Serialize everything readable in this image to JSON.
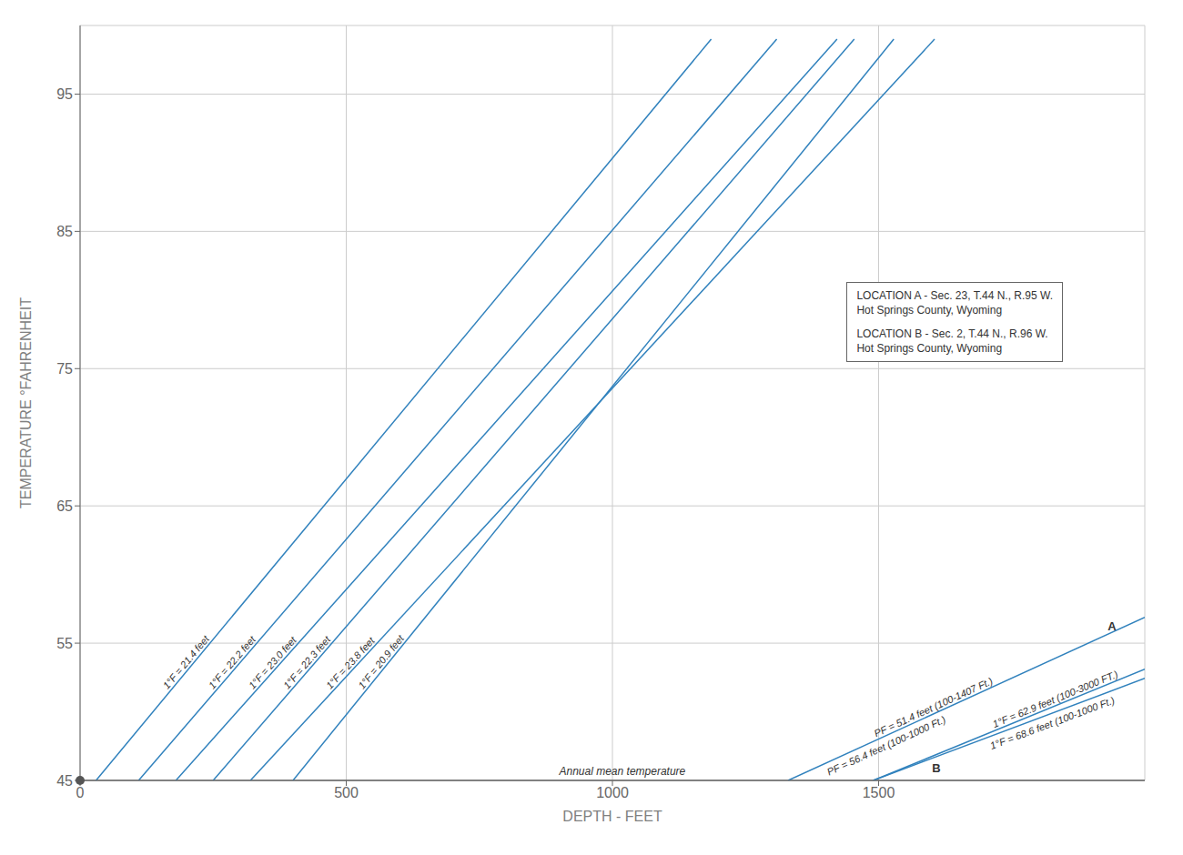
{
  "chart_data": {
    "type": "line",
    "xlabel": "DEPTH - FEET",
    "ylabel": "TEMPERATURE °FAHRENHEIT",
    "xlim": [
      0,
      2000
    ],
    "ylim": [
      45,
      100
    ],
    "xticks": [
      0,
      500,
      1000,
      1500
    ],
    "yticks": [
      45,
      55,
      65,
      75,
      85,
      95
    ],
    "grid": true,
    "series": [
      {
        "name": "1°F = 21.4 feet",
        "x": [
          30,
          1185.5746
        ],
        "values": [
          45,
          99
        ]
      },
      {
        "name": "1°F = 22.2 feet",
        "x": [
          110,
          1308.6681
        ],
        "values": [
          45,
          99
        ]
      },
      {
        "name": "1°F = 23.0 feet",
        "x": [
          180,
          1421.9503
        ],
        "values": [
          45,
          99
        ]
      },
      {
        "name": "1°F = 22.3 feet",
        "x": [
          250,
          1454.2819
        ],
        "values": [
          45,
          99
        ]
      },
      {
        "name": "1°F = 23.8 feet",
        "x": [
          320,
          1605.1023
        ],
        "values": [
          45,
          99
        ]
      },
      {
        "name": "1°F = 20.9 feet",
        "x": [
          400,
          1528.5266
        ],
        "values": [
          45,
          99
        ]
      },
      {
        "name": "PF = 56.4 feet (100-1000 Ft.)",
        "x": [
          1330,
          2000
        ],
        "values": [
          45,
          56.8794
        ],
        "location": "A",
        "annotation": "PF = 51.4 feet (100-1407 Ft.)"
      },
      {
        "name": "1°F = 68.6 feet (100-1000 Ft.)",
        "x": [
          1490,
          2000
        ],
        "values": [
          45,
          52.4344
        ],
        "location": "B"
      },
      {
        "name": "1°F = 62.9 feet (100-3000 FT.)",
        "x": [
          1490,
          2000
        ],
        "values": [
          45,
          53.1081
        ]
      }
    ],
    "hlines": [
      {
        "y": 45,
        "label": "Annual mean temperature"
      }
    ],
    "points": [
      {
        "x": 0,
        "y": 45
      }
    ],
    "text_box": [
      [
        "LOCATION A - Sec. 23, T.44 N., R.95 W.",
        "Hot Springs County, Wyoming"
      ],
      [
        "LOCATION B - Sec. 2, T.44 N., R.96 W.",
        "Hot Springs County, Wyoming"
      ]
    ]
  }
}
